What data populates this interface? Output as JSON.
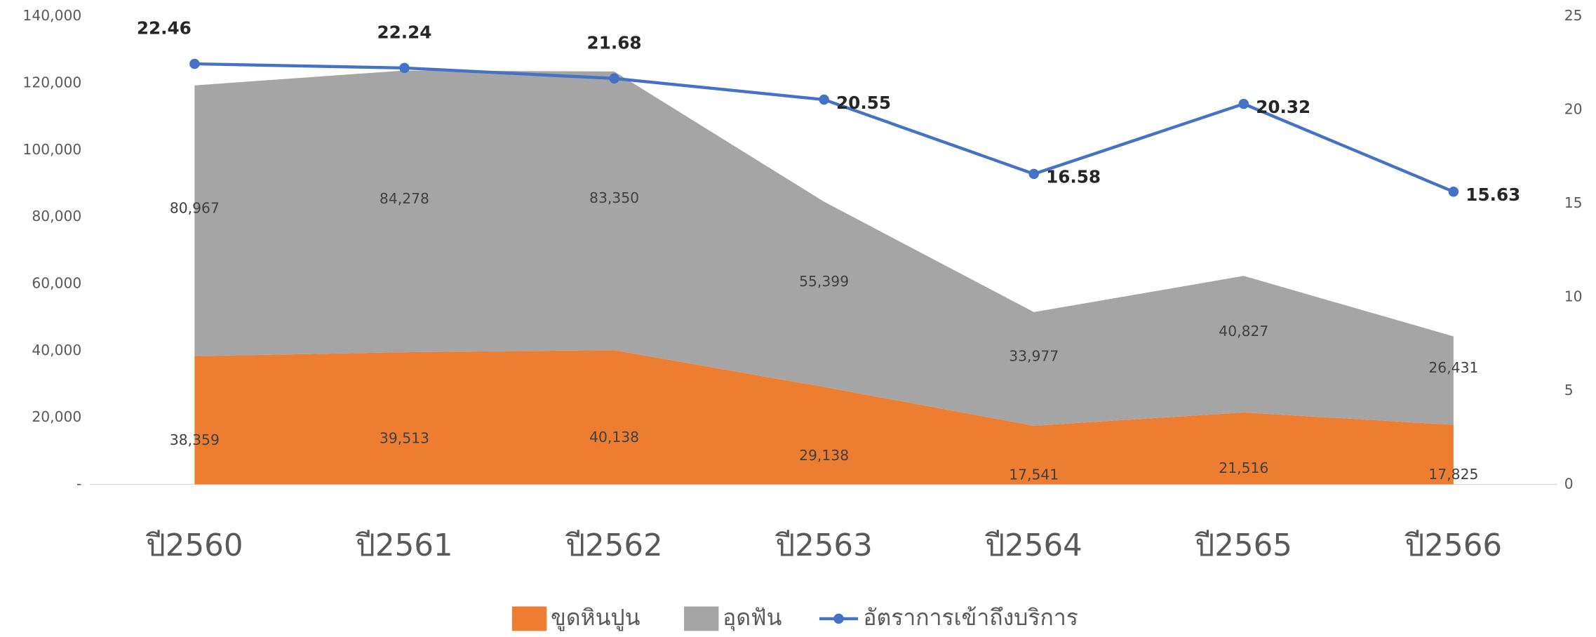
{
  "chart_data": {
    "type": "stacked-area-line",
    "categories": [
      "ปี2560",
      "ปี2561",
      "ปี2562",
      "ปี2563",
      "ปี2564",
      "ปี2565",
      "ปี2566"
    ],
    "series": [
      {
        "name": "ขูดหินปูน",
        "color": "#ED7D31",
        "values": [
          38359,
          39513,
          40138,
          29138,
          17541,
          21516,
          17825
        ],
        "value_labels": [
          "38,359",
          "39,513",
          "40,138",
          "29,138",
          "17,541",
          "21,516",
          "17,825"
        ]
      },
      {
        "name": "อุดฟัน",
        "color": "#A5A5A5",
        "values": [
          80967,
          84278,
          83350,
          55399,
          33977,
          40827,
          26431
        ],
        "value_labels": [
          "80,967",
          "84,278",
          "83,350",
          "55,399",
          "33,977",
          "40,827",
          "26,431"
        ]
      },
      {
        "name": "อัตราการเข้าถึงบริการ",
        "color": "#4472C4",
        "axis": "y2",
        "values": [
          22.46,
          22.24,
          21.68,
          20.55,
          16.58,
          20.32,
          15.63
        ]
      }
    ],
    "ylim": [
      0,
      140000
    ],
    "yticks": [
      {
        "value": 0,
        "label": "-"
      },
      {
        "value": 20000,
        "label": "20,000"
      },
      {
        "value": 40000,
        "label": "40,000"
      },
      {
        "value": 60000,
        "label": "60,000"
      },
      {
        "value": 80000,
        "label": "80,000"
      },
      {
        "value": 100000,
        "label": "100,000"
      },
      {
        "value": 120000,
        "label": "120,000"
      },
      {
        "value": 140000,
        "label": "140,000"
      }
    ],
    "y2lim": [
      0,
      25
    ],
    "y2ticks": [
      0,
      5,
      10,
      15,
      20,
      25
    ]
  }
}
